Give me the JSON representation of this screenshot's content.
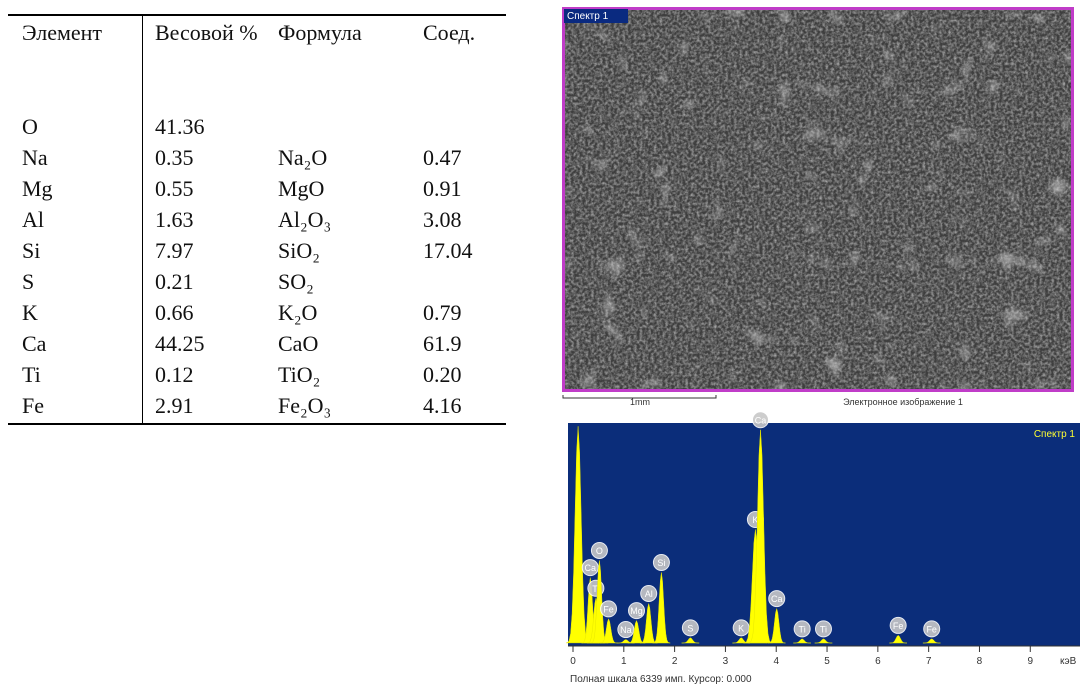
{
  "table": {
    "headers": [
      "Элемент",
      "Весовой %",
      "Формула",
      "Соед."
    ],
    "rows": [
      {
        "element": "O",
        "weight": "41.36"
      },
      {
        "element": "Na",
        "weight": "0.35",
        "formula": "Na₂O",
        "compound": "0.47"
      },
      {
        "element": "Mg",
        "weight": "0.55",
        "formula": "MgO",
        "compound": "0.91"
      },
      {
        "element": "Al",
        "weight": "1.63",
        "formula": "Al₂O₃",
        "compound": "3.08"
      },
      {
        "element": "Si",
        "weight": "7.97",
        "formula": "SiO₂",
        "compound": "17.04"
      },
      {
        "element": "S",
        "weight": "0.21",
        "formula": "SO₂"
      },
      {
        "element": "K",
        "weight": "0.66",
        "formula": "K₂O",
        "compound": "0.79"
      },
      {
        "element": "Ca",
        "weight": "44.25",
        "formula": "CaO",
        "compound": "61.9"
      },
      {
        "element": "Ti",
        "weight": "0.12",
        "formula": "TiO₂",
        "compound": "0.20"
      },
      {
        "element": "Fe",
        "weight": "2.91",
        "formula": "Fe₂O₃",
        "compound": "4.16"
      }
    ]
  },
  "image": {
    "label": "Спектр 1",
    "scale": "1mm",
    "caption": "Электронное изображение 1"
  },
  "spectrum": {
    "title": "Спектр 1",
    "xlim": [
      0,
      9.9
    ],
    "ylim": [
      0,
      6339
    ],
    "xticks": [
      0,
      1,
      2,
      3,
      4,
      5,
      6,
      7,
      8,
      9
    ],
    "x_unit": "кэВ",
    "footer": "Полная шкала 6339 имп. Курсор: 0.000",
    "peaks": [
      {
        "energy": 0.1,
        "counts": 6300
      },
      {
        "label": "Ca",
        "energy": 0.34,
        "counts": 1900
      },
      {
        "label": "Ti",
        "energy": 0.45,
        "counts": 1300
      },
      {
        "label": "O",
        "energy": 0.52,
        "counts": 2400
      },
      {
        "label": "Fe",
        "energy": 0.7,
        "counts": 700
      },
      {
        "label": "Na",
        "energy": 1.04,
        "counts": 100
      },
      {
        "label": "Mg",
        "energy": 1.25,
        "counts": 650
      },
      {
        "label": "Al",
        "energy": 1.49,
        "counts": 1150
      },
      {
        "label": "Si",
        "energy": 1.74,
        "counts": 2050
      },
      {
        "label": "S",
        "energy": 2.31,
        "counts": 150
      },
      {
        "label": "K",
        "energy": 3.31,
        "counts": 150
      },
      {
        "label": "K",
        "energy": 3.59,
        "counts": 3300
      },
      {
        "label": "Ca",
        "energy": 3.69,
        "counts": 6200
      },
      {
        "label": "Ca",
        "energy": 4.01,
        "counts": 1000
      },
      {
        "label": "Ti",
        "energy": 4.51,
        "counts": 120
      },
      {
        "label": "Ti",
        "energy": 4.93,
        "counts": 120
      },
      {
        "label": "Fe",
        "energy": 6.4,
        "counts": 220
      },
      {
        "label": "Fe",
        "energy": 7.06,
        "counts": 120
      }
    ]
  }
}
